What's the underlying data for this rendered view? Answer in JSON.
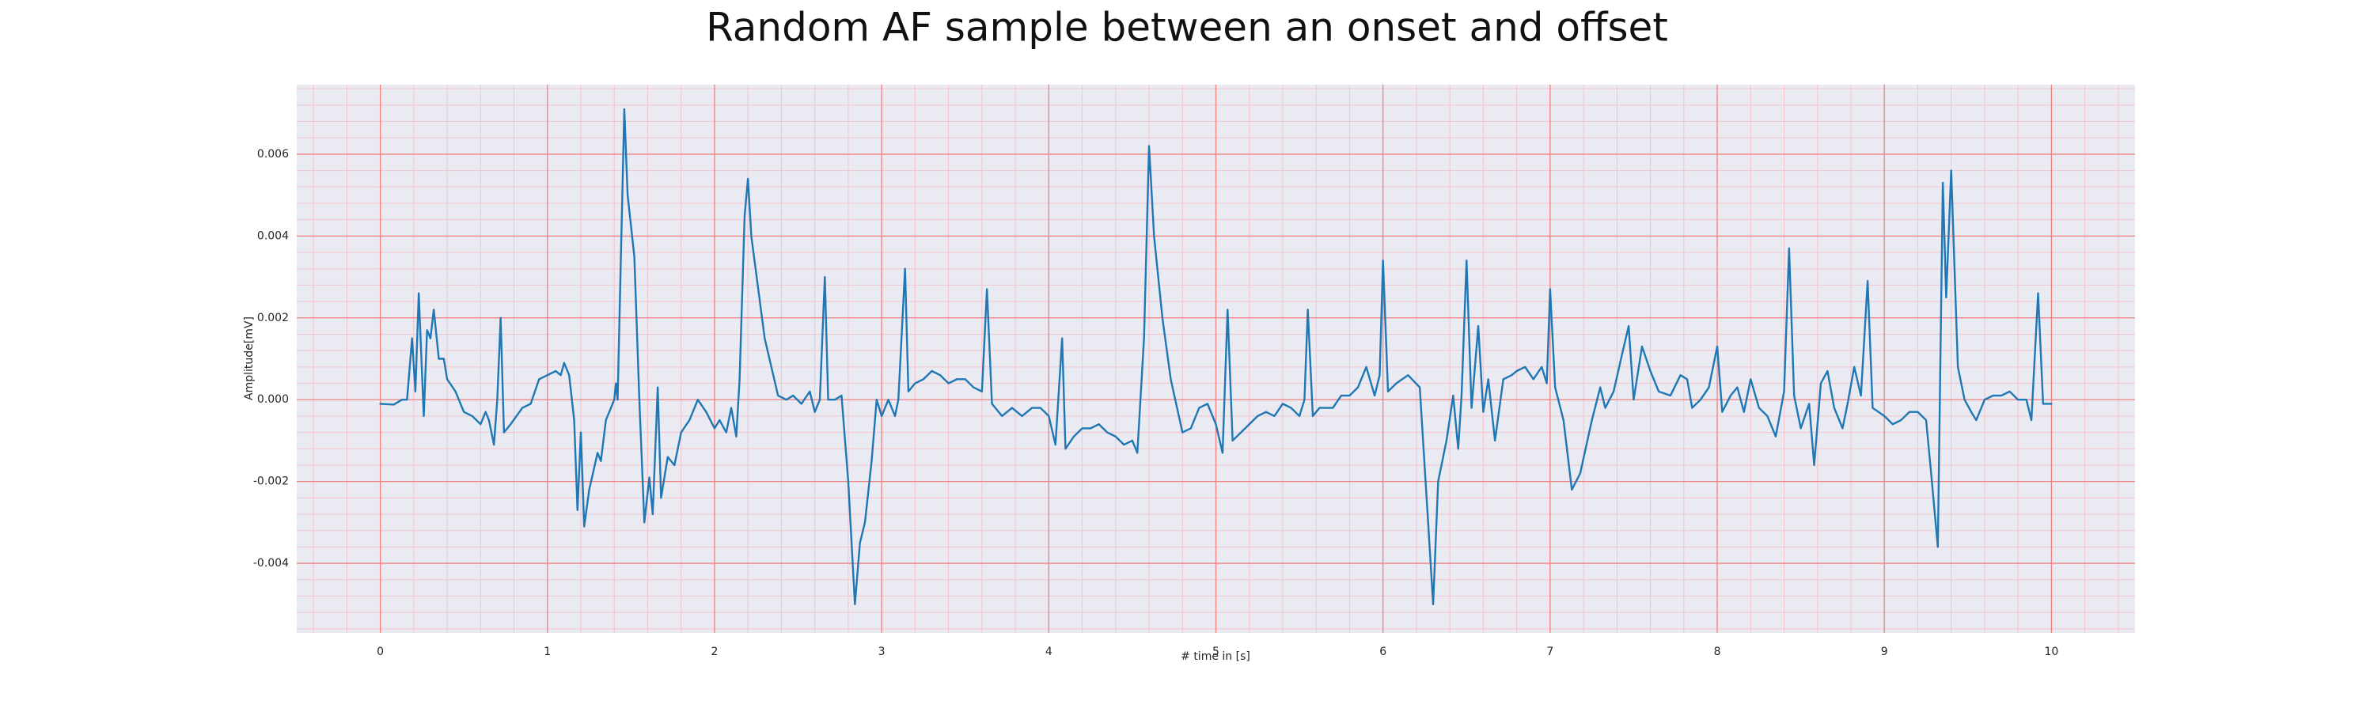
{
  "chart_data": {
    "type": "line",
    "title": "Random AF sample between an onset and offset",
    "xlabel": "# time in [s]",
    "ylabel": "Amplitude[mV]",
    "color": "#1f77b4",
    "background": "#eaeaf2",
    "grid": true,
    "grid_color": "#f08080",
    "minor_grid": true,
    "minor_grid_color": "#f4c4cc",
    "xlim": [
      -0.5,
      10.5
    ],
    "ylim": [
      -0.0057,
      0.0077
    ],
    "xticks": [
      0,
      1,
      2,
      3,
      4,
      5,
      6,
      7,
      8,
      9,
      10
    ],
    "yticks": [
      {
        "value": -0.004,
        "label": "-0.004"
      },
      {
        "value": -0.002,
        "label": "-0.002"
      },
      {
        "value": 0,
        "label": "0.000"
      },
      {
        "value": 0.002,
        "label": "0.002"
      },
      {
        "value": 0.004,
        "label": "0.004"
      },
      {
        "value": 0.006,
        "label": "0.006"
      }
    ],
    "x": [
      0.0,
      0.08,
      0.13,
      0.16,
      0.19,
      0.21,
      0.23,
      0.26,
      0.28,
      0.3,
      0.32,
      0.35,
      0.38,
      0.4,
      0.45,
      0.5,
      0.55,
      0.6,
      0.63,
      0.65,
      0.68,
      0.7,
      0.72,
      0.74,
      0.78,
      0.85,
      0.9,
      0.95,
      1.0,
      1.05,
      1.08,
      1.1,
      1.13,
      1.16,
      1.18,
      1.2,
      1.22,
      1.25,
      1.3,
      1.32,
      1.35,
      1.4,
      1.41,
      1.42,
      1.46,
      1.48,
      1.52,
      1.55,
      1.58,
      1.61,
      1.63,
      1.66,
      1.68,
      1.72,
      1.76,
      1.8,
      1.85,
      1.9,
      1.95,
      2.0,
      2.03,
      2.07,
      2.1,
      2.13,
      2.15,
      2.18,
      2.2,
      2.22,
      2.3,
      2.38,
      2.43,
      2.47,
      2.52,
      2.57,
      2.6,
      2.63,
      2.66,
      2.68,
      2.72,
      2.76,
      2.8,
      2.84,
      2.87,
      2.9,
      2.94,
      2.97,
      3.0,
      3.04,
      3.08,
      3.1,
      3.14,
      3.16,
      3.2,
      3.25,
      3.3,
      3.35,
      3.4,
      3.45,
      3.5,
      3.55,
      3.6,
      3.63,
      3.66,
      3.72,
      3.78,
      3.84,
      3.9,
      3.95,
      4.0,
      4.04,
      4.08,
      4.1,
      4.15,
      4.2,
      4.25,
      4.3,
      4.35,
      4.4,
      4.45,
      4.5,
      4.53,
      4.57,
      4.6,
      4.63,
      4.68,
      4.73,
      4.8,
      4.85,
      4.9,
      4.95,
      5.0,
      5.04,
      5.07,
      5.1,
      5.15,
      5.2,
      5.25,
      5.3,
      5.35,
      5.4,
      5.45,
      5.5,
      5.53,
      5.55,
      5.58,
      5.62,
      5.7,
      5.75,
      5.8,
      5.85,
      5.9,
      5.95,
      5.98,
      6.0,
      6.03,
      6.08,
      6.15,
      6.22,
      6.27,
      6.3,
      6.33,
      6.38,
      6.42,
      6.45,
      6.47,
      6.5,
      6.53,
      6.57,
      6.6,
      6.63,
      6.67,
      6.72,
      6.77,
      6.8,
      6.85,
      6.9,
      6.95,
      6.98,
      7.0,
      7.03,
      7.08,
      7.13,
      7.18,
      7.25,
      7.3,
      7.33,
      7.38,
      7.43,
      7.47,
      7.5,
      7.55,
      7.6,
      7.65,
      7.72,
      7.78,
      7.82,
      7.85,
      7.9,
      7.95,
      8.0,
      8.03,
      8.08,
      8.12,
      8.16,
      8.2,
      8.25,
      8.3,
      8.35,
      8.4,
      8.43,
      8.46,
      8.5,
      8.55,
      8.58,
      8.62,
      8.66,
      8.7,
      8.75,
      8.78,
      8.82,
      8.86,
      8.9,
      8.93,
      9.0,
      9.05,
      9.1,
      9.15,
      9.2,
      9.25,
      9.28,
      9.32,
      9.35,
      9.37,
      9.4,
      9.44,
      9.48,
      9.52,
      9.55,
      9.6,
      9.65,
      9.7,
      9.75,
      9.8,
      9.85,
      9.88,
      9.92,
      9.95,
      10.0
    ],
    "values": [
      -0.0001,
      -0.00012,
      0.0,
      0.0,
      0.0015,
      0.0002,
      0.0026,
      -0.0004,
      0.0017,
      0.0015,
      0.0022,
      0.001,
      0.001,
      0.0005,
      0.0002,
      -0.0003,
      -0.0004,
      -0.0006,
      -0.0003,
      -0.0005,
      -0.0011,
      0.0,
      0.002,
      -0.0008,
      -0.0006,
      -0.0002,
      -0.0001,
      0.0005,
      0.0006,
      0.0007,
      0.0006,
      0.0009,
      0.0006,
      -0.0005,
      -0.0027,
      -0.0008,
      -0.0031,
      -0.0022,
      -0.0013,
      -0.0015,
      -0.0005,
      0.0,
      0.0004,
      0.0,
      0.0071,
      0.005,
      0.0035,
      0.0,
      -0.003,
      -0.0019,
      -0.0028,
      0.0003,
      -0.0024,
      -0.0014,
      -0.0016,
      -0.0008,
      -0.0005,
      0.0,
      -0.0003,
      -0.0007,
      -0.0005,
      -0.0008,
      -0.0002,
      -0.0009,
      0.0005,
      0.0045,
      0.0054,
      0.004,
      0.0015,
      0.0001,
      0.0,
      0.0001,
      -0.0001,
      0.0002,
      -0.0003,
      0.0,
      0.003,
      0.0,
      0.0,
      0.0001,
      -0.002,
      -0.005,
      -0.0035,
      -0.003,
      -0.0015,
      0.0,
      -0.0004,
      0.0,
      -0.0004,
      0.0,
      0.0032,
      0.0002,
      0.0004,
      0.0005,
      0.0007,
      0.0006,
      0.0004,
      0.0005,
      0.0005,
      0.0003,
      0.0002,
      0.0027,
      -0.0001,
      -0.0004,
      -0.0002,
      -0.0004,
      -0.0002,
      -0.0002,
      -0.0004,
      -0.0011,
      0.0015,
      -0.0012,
      -0.0009,
      -0.0007,
      -0.0007,
      -0.0006,
      -0.0008,
      -0.0009,
      -0.0011,
      -0.001,
      -0.0013,
      0.0015,
      0.0062,
      0.004,
      0.002,
      0.0005,
      -0.0008,
      -0.0007,
      -0.0002,
      -0.0001,
      -0.0006,
      -0.0013,
      0.0022,
      -0.001,
      -0.0008,
      -0.0006,
      -0.0004,
      -0.0003,
      -0.0004,
      -0.0001,
      -0.0002,
      -0.0004,
      0.0,
      0.0022,
      -0.0004,
      -0.0002,
      -0.0002,
      0.0001,
      0.0001,
      0.0003,
      0.0008,
      0.0001,
      0.0006,
      0.0034,
      0.0002,
      0.0004,
      0.0006,
      0.0003,
      -0.003,
      -0.005,
      -0.002,
      -0.001,
      0.0001,
      -0.0012,
      0.0001,
      0.0034,
      -0.0002,
      0.0018,
      -0.0003,
      0.0005,
      -0.001,
      0.0005,
      0.0006,
      0.0007,
      0.0008,
      0.0005,
      0.0008,
      0.0004,
      0.0027,
      0.0003,
      -0.0005,
      -0.0022,
      -0.0018,
      -0.0005,
      0.0003,
      -0.0002,
      0.0002,
      0.0011,
      0.0018,
      0.0,
      0.0013,
      0.0007,
      0.0002,
      0.0001,
      0.0006,
      0.0005,
      -0.0002,
      0.0,
      0.0003,
      0.0013,
      -0.0003,
      0.0001,
      0.0003,
      -0.0003,
      0.0005,
      -0.0002,
      -0.0004,
      -0.0009,
      0.0002,
      0.0037,
      0.0001,
      -0.0007,
      -0.0001,
      -0.0016,
      0.0004,
      0.0007,
      -0.0002,
      -0.0007,
      -0.0001,
      0.0008,
      0.0001,
      0.0029,
      -0.0002,
      -0.0004,
      -0.0006,
      -0.0005,
      -0.0003,
      -0.0003,
      -0.0005,
      -0.0018,
      -0.0036,
      0.0053,
      0.0025,
      0.0056,
      0.0008,
      0.0,
      -0.0003,
      -0.0005,
      0.0,
      0.0001,
      0.0001,
      0.0002,
      0.0,
      0.0,
      -0.0005,
      0.0026,
      -0.0001,
      -0.0001
    ]
  }
}
